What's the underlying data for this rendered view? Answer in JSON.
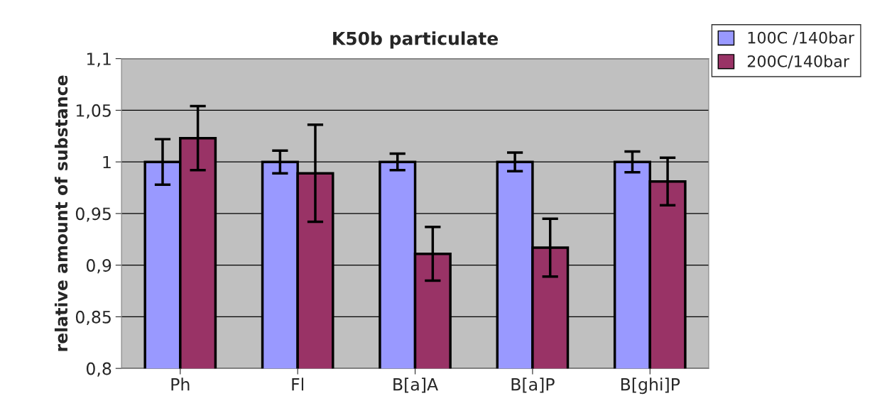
{
  "chart_data": {
    "type": "bar",
    "title": "K50b particulate",
    "ylabel": "relative amount of substance",
    "categories": [
      "Ph",
      "Fl",
      "B[a]A",
      "B[a]P",
      "B[ghi]P"
    ],
    "series": [
      {
        "name": "100C /140bar",
        "color": "#9999ff",
        "values": [
          1.0,
          1.0,
          1.0,
          1.0,
          1.0
        ],
        "errors": [
          0.022,
          0.011,
          0.008,
          0.009,
          0.01
        ]
      },
      {
        "name": "200C/140bar",
        "color": "#993366",
        "values": [
          1.023,
          0.989,
          0.911,
          0.917,
          0.981
        ],
        "errors": [
          0.031,
          0.047,
          0.026,
          0.028,
          0.023
        ]
      }
    ],
    "ylim": [
      0.8,
      1.1
    ],
    "yticks": [
      {
        "value": 0.8,
        "label": "0,8"
      },
      {
        "value": 0.85,
        "label": "0,85"
      },
      {
        "value": 0.9,
        "label": "0,9"
      },
      {
        "value": 0.95,
        "label": "0,95"
      },
      {
        "value": 1,
        "label": "1"
      },
      {
        "value": 1.05,
        "label": "1,05"
      },
      {
        "value": 1.1,
        "label": "1,1"
      }
    ],
    "grid": "y",
    "legend": "top right"
  }
}
